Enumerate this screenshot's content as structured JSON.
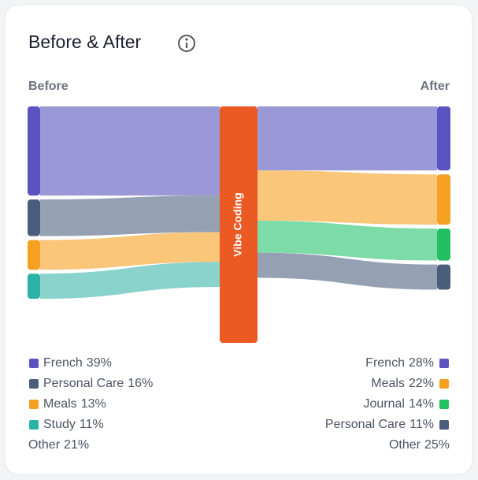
{
  "chart_data": {
    "type": "sankey",
    "title": "Before & After",
    "left_label": "Before",
    "right_label": "After",
    "center_label": "Vibe Coding",
    "center_color": "#ec5a23",
    "sources": {
      "categories": [
        "French",
        "Personal Care",
        "Meals",
        "Study"
      ],
      "values": [
        39,
        16,
        13,
        11
      ],
      "value_labels": [
        "39%",
        "16%",
        "13%",
        "11%"
      ],
      "colors": [
        "#5b54c0",
        "#4a5d7a",
        "#f5a020",
        "#2bb3a8"
      ],
      "flow_colors": [
        "#9b98d8",
        "#95a1b3",
        "#f9c67a",
        "#8ad3cc"
      ]
    },
    "sources_other": {
      "name": "Other",
      "value": 21,
      "value_label": "21%"
    },
    "targets": {
      "categories": [
        "French",
        "Meals",
        "Journal",
        "Personal Care"
      ],
      "values": [
        28,
        22,
        14,
        11
      ],
      "value_labels": [
        "28%",
        "22%",
        "14%",
        "11%"
      ],
      "colors": [
        "#5b54c0",
        "#f5a020",
        "#22c063",
        "#4a5d7a"
      ],
      "flow_colors": [
        "#9b98d8",
        "#f9c67a",
        "#7cdba6",
        "#95a1b3"
      ]
    },
    "targets_other": {
      "name": "Other",
      "value": 25,
      "value_label": "25%"
    }
  }
}
